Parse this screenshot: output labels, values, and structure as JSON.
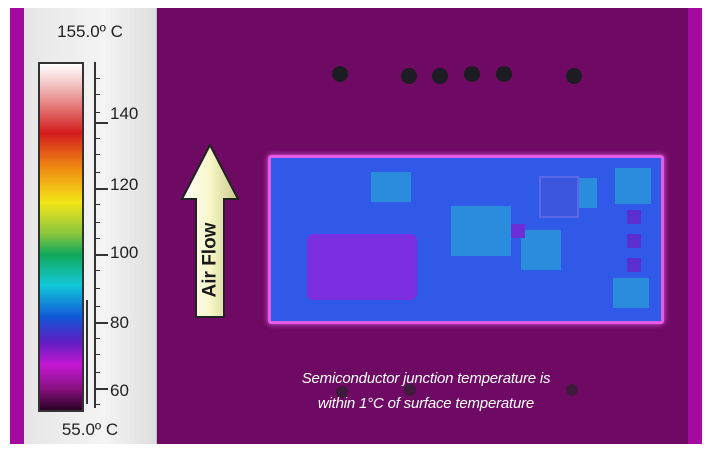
{
  "scale": {
    "max_label": "155.0º C",
    "min_label": "55.0º C",
    "ticks": [
      "140",
      "120",
      "100",
      "80",
      "60"
    ]
  },
  "arrow": {
    "label": "Air Flow"
  },
  "caption": {
    "line1": "Semiconductor junction temperature is",
    "line2": "within 1°C of surface temperature"
  },
  "colors": {
    "background": "#6e0a63",
    "board": "#2f59e6",
    "board_outline": "#e75ae6",
    "arrow_fill": "#f7f7c9"
  }
}
